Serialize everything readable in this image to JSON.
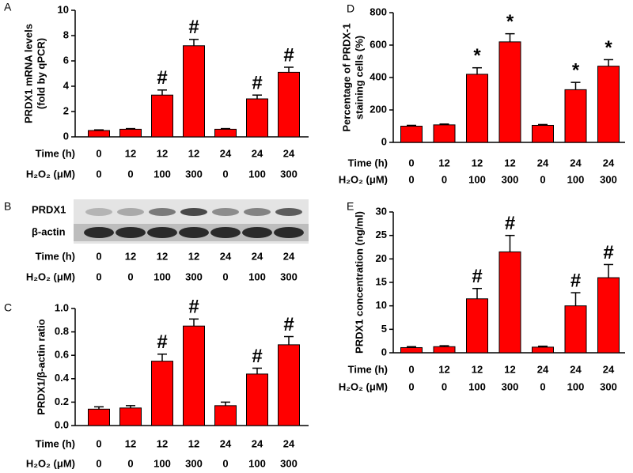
{
  "chart_data": [
    {
      "type": "bar",
      "panel": "A",
      "ylabel": [
        "PRDX1 mRNA levels",
        "(fold by qPCR)"
      ],
      "color": "#ff0000",
      "row_labels": [
        "Time (h)",
        "H₂O₂ (μM)"
      ],
      "time": [
        "0",
        "12",
        "12",
        "12",
        "24",
        "24",
        "24"
      ],
      "h2o2": [
        "0",
        "0",
        "100",
        "300",
        "0",
        "100",
        "300"
      ],
      "values": [
        0.5,
        0.6,
        3.3,
        7.2,
        0.6,
        3.0,
        5.1
      ],
      "errors": [
        0.05,
        0.05,
        0.4,
        0.5,
        0.05,
        0.3,
        0.4
      ],
      "markers": [
        null,
        null,
        "#",
        "#",
        null,
        "#",
        "#"
      ],
      "ylim": [
        0,
        10
      ],
      "yticks": [
        0,
        2,
        4,
        6,
        8,
        10
      ]
    },
    {
      "type": "bar",
      "panel": "C",
      "ylabel": [
        "PRDX1/β-actin ratio"
      ],
      "color": "#ff0000",
      "row_labels": [
        "Time (h)",
        "H₂O₂ (μM)"
      ],
      "time": [
        "0",
        "12",
        "12",
        "12",
        "24",
        "24",
        "24"
      ],
      "h2o2": [
        "0",
        "0",
        "100",
        "300",
        "0",
        "100",
        "300"
      ],
      "values": [
        0.14,
        0.15,
        0.55,
        0.85,
        0.17,
        0.44,
        0.69
      ],
      "errors": [
        0.02,
        0.02,
        0.06,
        0.06,
        0.03,
        0.05,
        0.07
      ],
      "markers": [
        null,
        null,
        "#",
        "#",
        null,
        "#",
        "#"
      ],
      "ylim": [
        0,
        1
      ],
      "yticks": [
        {
          "value": 0,
          "label": "0.0"
        },
        0.2,
        0.4,
        0.6,
        0.8,
        {
          "value": 1,
          "label": "1.0"
        }
      ]
    },
    {
      "type": "bar",
      "panel": "D",
      "ylabel": [
        "Percentage of PRDX-1",
        "staining cells (%)"
      ],
      "color": "#ff0000",
      "row_labels": [
        "Time (h)",
        "H₂O₂ (μM)"
      ],
      "time": [
        "0",
        "12",
        "12",
        "12",
        "24",
        "24",
        "24"
      ],
      "h2o2": [
        "0",
        "0",
        "100",
        "300",
        "0",
        "100",
        "300"
      ],
      "values": [
        100,
        108,
        420,
        620,
        105,
        325,
        470
      ],
      "errors": [
        5,
        5,
        40,
        50,
        5,
        45,
        40
      ],
      "markers": [
        null,
        null,
        "*",
        "*",
        null,
        "*",
        "*"
      ],
      "ylim": [
        0,
        800
      ],
      "yticks": [
        0,
        200,
        400,
        600,
        800
      ]
    },
    {
      "type": "bar",
      "panel": "E",
      "ylabel": [
        "PRDX1 concentration (ng/ml)"
      ],
      "color": "#ff0000",
      "row_labels": [
        "Time (h)",
        "H₂O₂ (μM)"
      ],
      "time": [
        "0",
        "12",
        "12",
        "12",
        "24",
        "24",
        "24"
      ],
      "h2o2": [
        "0",
        "0",
        "100",
        "300",
        "0",
        "100",
        "300"
      ],
      "values": [
        1.1,
        1.3,
        11.5,
        21.5,
        1.2,
        10,
        16
      ],
      "errors": [
        0.2,
        0.2,
        2.2,
        3.5,
        0.2,
        2.8,
        2.8
      ],
      "markers": [
        null,
        null,
        "#",
        "#",
        null,
        "#",
        "#"
      ],
      "ylim": [
        0,
        30
      ],
      "yticks": [
        0,
        5,
        10,
        15,
        20,
        25,
        30
      ]
    }
  ],
  "blot": {
    "panel": "B",
    "bands": [
      "PRDX1",
      "β-actin"
    ],
    "row_labels": [
      "Time (h)",
      "H₂O₂ (μM)"
    ],
    "time": [
      "0",
      "12",
      "12",
      "12",
      "24",
      "24",
      "24"
    ],
    "h2o2": [
      "0",
      "0",
      "100",
      "300",
      "0",
      "100",
      "300"
    ]
  }
}
